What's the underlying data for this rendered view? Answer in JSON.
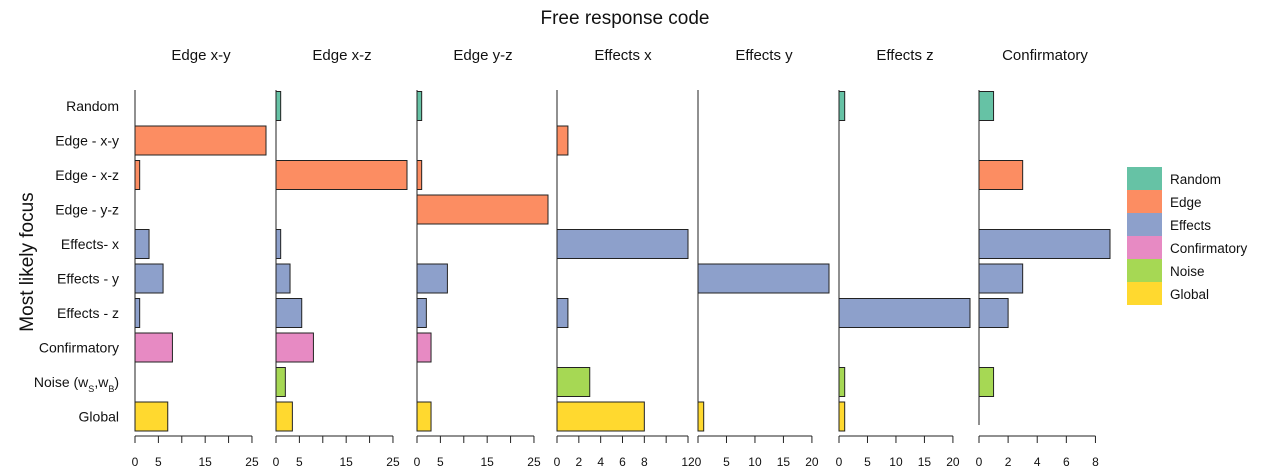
{
  "chart_data": {
    "type": "bar",
    "orientation": "horizontal",
    "title": "Free response code",
    "ylabel": "Most likely focus",
    "categories": [
      "Random",
      "Edge - x-y",
      "Edge - x-z",
      "Edge  - y-z",
      "Effects- x",
      "Effects - y",
      "Effects - z",
      "Confirmatory",
      "Noise (w_S,w_B)",
      "Global"
    ],
    "category_groups": [
      "Random",
      "Edge",
      "Edge",
      "Edge",
      "Effects",
      "Effects",
      "Effects",
      "Confirmatory",
      "Noise",
      "Global"
    ],
    "colors": {
      "Random": "#66c2a5",
      "Edge": "#fc8d62",
      "Effects": "#8da0cb",
      "Confirmatory": "#e78ac3",
      "Noise": "#a6d854",
      "Global": "#ffd92f"
    },
    "legend": {
      "position": "right",
      "items": [
        "Random",
        "Edge",
        "Effects",
        "Confirmatory",
        "Noise",
        "Global"
      ]
    },
    "grid": false,
    "panels": [
      {
        "title": "Edge x-y",
        "xlim": [
          0,
          28
        ],
        "ticks": [
          0,
          5,
          10,
          15,
          20,
          25
        ],
        "tick_labels": [
          "0",
          "5",
          "",
          "15",
          "",
          "25"
        ],
        "values": [
          0,
          28,
          1,
          0,
          3,
          6,
          1,
          8,
          0,
          7
        ]
      },
      {
        "title": "Edge x-z",
        "xlim": [
          0,
          28
        ],
        "ticks": [
          0,
          5,
          10,
          15,
          20,
          25
        ],
        "tick_labels": [
          "0",
          "5",
          "",
          "15",
          "",
          "25"
        ],
        "values": [
          1,
          0,
          28,
          0,
          1,
          3,
          5.5,
          8,
          2,
          3.5
        ]
      },
      {
        "title": "Edge y-z",
        "xlim": [
          0,
          28
        ],
        "ticks": [
          0,
          5,
          10,
          15,
          20,
          25
        ],
        "tick_labels": [
          "0",
          "5",
          "",
          "15",
          "",
          "25"
        ],
        "values": [
          1,
          0,
          1,
          28,
          0,
          6.5,
          2,
          3,
          0,
          3
        ]
      },
      {
        "title": "Effects x",
        "xlim": [
          0,
          12
        ],
        "ticks": [
          0,
          2,
          4,
          6,
          8,
          10,
          12
        ],
        "tick_labels": [
          "0",
          "2",
          "4",
          "6",
          "8",
          "",
          "12"
        ],
        "values": [
          0,
          1,
          0,
          0,
          12,
          0,
          1,
          0,
          3,
          8
        ]
      },
      {
        "title": "Effects y",
        "xlim": [
          0,
          23
        ],
        "ticks": [
          0,
          5,
          10,
          15,
          20
        ],
        "tick_labels": [
          "0",
          "5",
          "10",
          "15",
          "20"
        ],
        "values": [
          0,
          0,
          0,
          0,
          0,
          23,
          0,
          0,
          0,
          1
        ]
      },
      {
        "title": "Effects z",
        "xlim": [
          0,
          23
        ],
        "ticks": [
          0,
          5,
          10,
          15,
          20
        ],
        "tick_labels": [
          "0",
          "5",
          "10",
          "15",
          "20"
        ],
        "values": [
          1,
          0,
          0,
          0,
          0,
          0,
          23,
          0,
          1,
          1
        ]
      },
      {
        "title": "Confirmatory",
        "xlim": [
          0,
          9
        ],
        "ticks": [
          0,
          2,
          4,
          6,
          8
        ],
        "tick_labels": [
          "0",
          "2",
          "4",
          "6",
          "8"
        ],
        "values": [
          1,
          0,
          3,
          0,
          9,
          3,
          2,
          0,
          1,
          0
        ]
      }
    ]
  }
}
